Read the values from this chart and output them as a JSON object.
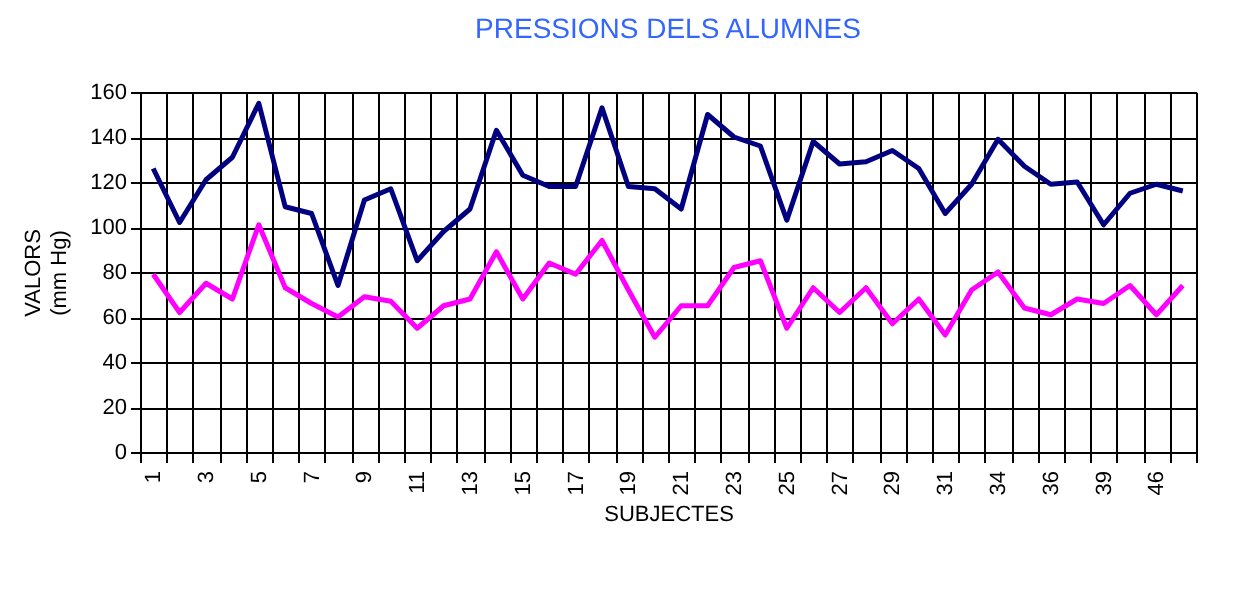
{
  "chart_data": {
    "type": "line",
    "title": "PRESSIONS DELS ALUMNES",
    "xlabel": "SUBJECTES",
    "ylabel": "VALORS\n(mm Hg)",
    "categories": [
      "1",
      null,
      "3",
      null,
      "5",
      null,
      "7",
      null,
      "9",
      null,
      "11",
      null,
      "13",
      null,
      "15",
      null,
      "17",
      null,
      "19",
      null,
      "21",
      null,
      "23",
      null,
      "25",
      null,
      "27",
      null,
      "29",
      null,
      "31",
      null,
      "34",
      null,
      "36",
      null,
      "39",
      null,
      "46",
      null
    ],
    "series": [
      {
        "color": "#000080",
        "values": [
          126,
          102,
          121,
          131,
          155,
          109,
          106,
          74,
          112,
          117,
          85,
          98,
          108,
          143,
          123,
          118,
          118,
          153,
          118,
          117,
          108,
          150,
          140,
          136,
          103,
          138,
          128,
          129,
          134,
          126,
          106,
          119,
          139,
          127,
          119,
          120,
          101,
          115,
          119,
          116
        ]
      },
      {
        "color": "#ff00ff",
        "values": [
          79,
          62,
          75,
          68,
          101,
          73,
          66,
          60,
          69,
          67,
          55,
          65,
          68,
          89,
          68,
          84,
          79,
          94,
          72,
          51,
          65,
          65,
          82,
          85,
          55,
          73,
          62,
          73,
          57,
          68,
          52,
          72,
          80,
          64,
          61,
          68,
          66,
          74,
          61,
          74
        ]
      }
    ],
    "ylim": [
      0,
      160
    ],
    "yticks": [
      0,
      20,
      40,
      60,
      80,
      100,
      120,
      140,
      160
    ],
    "grid": true,
    "legend": false,
    "marker": "none",
    "line_style": "solid"
  }
}
